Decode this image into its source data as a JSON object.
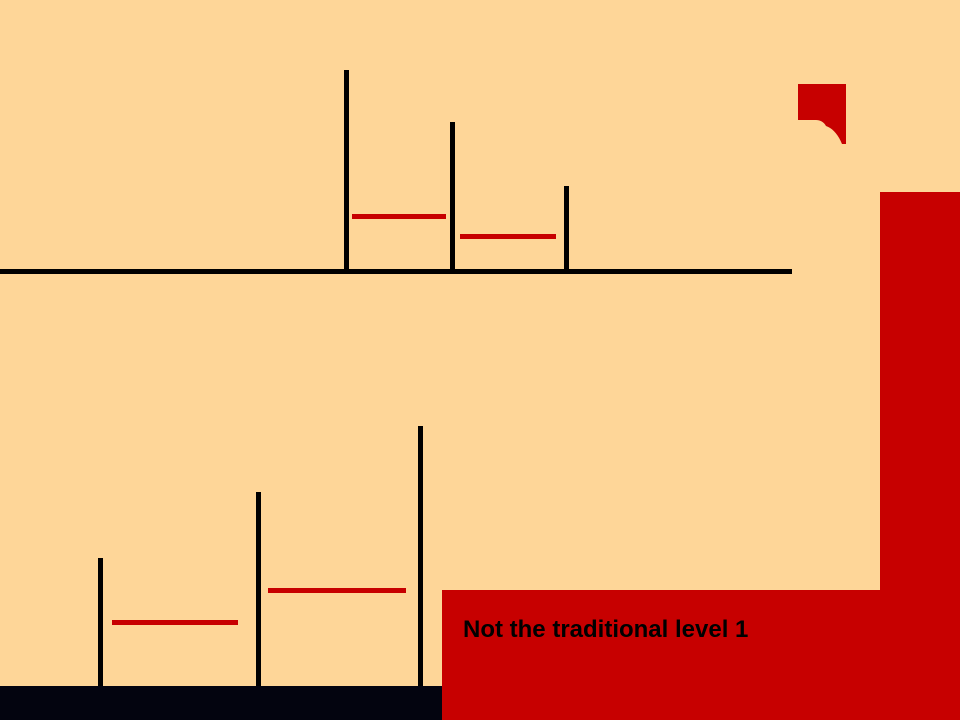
{
  "level": {
    "caption": "Not the traditional level 1"
  },
  "colors": {
    "background": "#FED698",
    "hazard_red": "#C70000",
    "line_black": "#000000",
    "floor": "#03040F"
  }
}
